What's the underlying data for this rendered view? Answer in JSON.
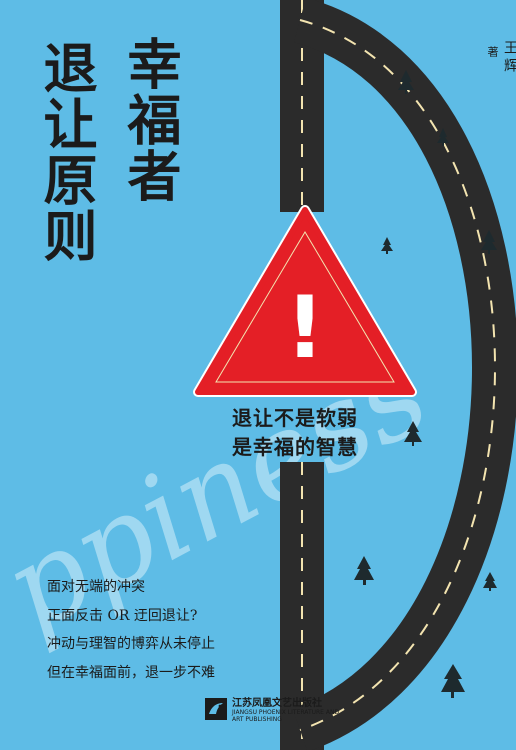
{
  "cover": {
    "title_line1": "幸福者",
    "title_line2": "退让原则",
    "author_name": "王辉",
    "author_role": "著",
    "script_word": "ppiness",
    "tagline_line1": "退让不是软弱",
    "tagline_line2": "是幸福的智慧",
    "blurb": [
      "面对无端的冲突",
      "正面反击 OR 迂回退让?",
      "冲动与理智的博弈从未停止",
      "但在幸福面前，退一步不难"
    ],
    "publisher_cn": "江苏凤凰文艺出版社",
    "publisher_en_line1": "JIANGSU PHOENIX LITERATURE AND",
    "publisher_en_line2": "ART PUBLISHING",
    "warning_mark": "!"
  },
  "colors": {
    "background": "#5ebce6",
    "road": "#2b2b2b",
    "warning": "#e41f26",
    "lane": "#f3e4b0"
  },
  "icons": [
    "pine-tree-icon",
    "warning-triangle-icon",
    "publisher-logo-icon"
  ]
}
